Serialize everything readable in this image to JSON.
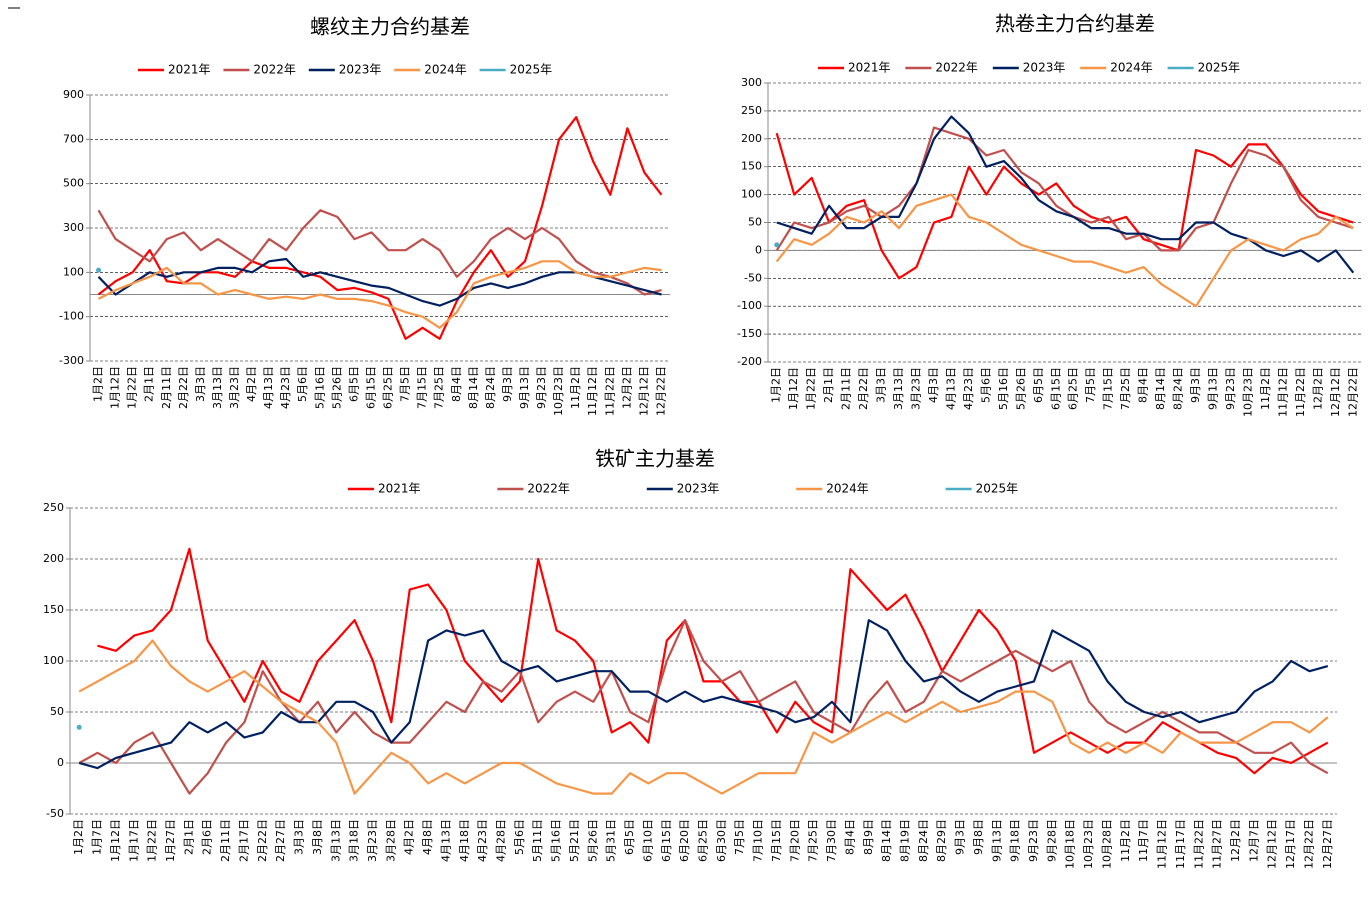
{
  "chart_data": [
    {
      "type": "line",
      "title": "螺纹主力合约基差",
      "grid": true,
      "categories": [
        "1月2日",
        "1月12日",
        "1月22日",
        "2月1日",
        "2月11日",
        "2月22日",
        "3月3日",
        "3月13日",
        "3月23日",
        "4月2日",
        "4月13日",
        "4月23日",
        "5月6日",
        "5月16日",
        "5月26日",
        "6月5日",
        "6月15日",
        "6月25日",
        "7月5日",
        "7月15日",
        "7月25日",
        "8月4日",
        "8月14日",
        "8月24日",
        "9月3日",
        "9月13日",
        "9月23日",
        "10月23日",
        "11月2日",
        "11月12日",
        "11月22日",
        "12月2日",
        "12月12日",
        "12月22日"
      ],
      "ylim": [
        -300,
        900
      ],
      "yticks": [
        -300,
        -100,
        100,
        300,
        500,
        700,
        900
      ],
      "series": [
        {
          "name": "2021年",
          "color": "#ff0000",
          "values": [
            0,
            60,
            100,
            200,
            60,
            50,
            100,
            100,
            80,
            150,
            120,
            120,
            100,
            80,
            20,
            30,
            10,
            -20,
            -200,
            -150,
            -200,
            -30,
            100,
            200,
            80,
            150,
            400,
            700,
            800,
            600,
            450,
            750,
            550,
            450
          ]
        },
        {
          "name": "2022年",
          "color": "#c0504d",
          "values": [
            380,
            250,
            200,
            150,
            250,
            280,
            200,
            250,
            200,
            150,
            250,
            200,
            300,
            380,
            350,
            250,
            280,
            200,
            200,
            250,
            200,
            80,
            150,
            250,
            300,
            250,
            300,
            250,
            150,
            100,
            80,
            50,
            0,
            20
          ]
        },
        {
          "name": "2023年",
          "color": "#002060",
          "values": [
            80,
            0,
            50,
            100,
            80,
            100,
            100,
            120,
            120,
            100,
            150,
            160,
            80,
            100,
            80,
            60,
            40,
            30,
            0,
            -30,
            -50,
            -20,
            30,
            50,
            30,
            50,
            80,
            100,
            100,
            80,
            60,
            40,
            20,
            0
          ]
        },
        {
          "name": "2024年",
          "color": "#f79646",
          "values": [
            -20,
            20,
            50,
            80,
            120,
            50,
            50,
            0,
            20,
            0,
            -20,
            -10,
            -20,
            0,
            -20,
            -20,
            -30,
            -50,
            -80,
            -100,
            -150,
            -80,
            50,
            80,
            100,
            120,
            150,
            150,
            100,
            80,
            80,
            100,
            120,
            110
          ]
        },
        {
          "name": "2025年",
          "color": "#4bacc6",
          "values": [
            110,
            null,
            null,
            null,
            null,
            null,
            null,
            null,
            null,
            null,
            null,
            null,
            null,
            null,
            null,
            null,
            null,
            null,
            null,
            null,
            null,
            null,
            null,
            null,
            null,
            null,
            null,
            null,
            null,
            null,
            null,
            null,
            null,
            null
          ]
        }
      ]
    },
    {
      "type": "line",
      "title": "热卷主力合约基差",
      "grid": true,
      "categories": [
        "1月2日",
        "1月12日",
        "1月22日",
        "2月1日",
        "2月11日",
        "2月22日",
        "3月3日",
        "3月13日",
        "3月23日",
        "4月3日",
        "4月13日",
        "4月23日",
        "5月6日",
        "5月16日",
        "5月26日",
        "6月5日",
        "6月15日",
        "6月25日",
        "7月5日",
        "7月15日",
        "7月25日",
        "8月4日",
        "8月14日",
        "8月24日",
        "9月3日",
        "9月13日",
        "9月23日",
        "10月23日",
        "11月2日",
        "11月12日",
        "11月22日",
        "12月2日",
        "12月12日",
        "12月22日"
      ],
      "ylim": [
        -200,
        300
      ],
      "yticks": [
        -200,
        -150,
        -100,
        -50,
        0,
        50,
        100,
        150,
        200,
        250,
        300
      ],
      "series": [
        {
          "name": "2021年",
          "color": "#ff0000",
          "values": [
            210,
            100,
            130,
            50,
            80,
            90,
            0,
            -50,
            -30,
            50,
            60,
            150,
            100,
            150,
            120,
            100,
            120,
            80,
            60,
            50,
            60,
            20,
            10,
            0,
            180,
            170,
            150,
            190,
            190,
            150,
            100,
            70,
            60,
            50
          ]
        },
        {
          "name": "2022年",
          "color": "#c0504d",
          "values": [
            0,
            50,
            40,
            50,
            70,
            80,
            60,
            80,
            120,
            220,
            210,
            200,
            170,
            180,
            140,
            120,
            80,
            60,
            50,
            60,
            20,
            30,
            0,
            0,
            40,
            50,
            120,
            180,
            170,
            150,
            90,
            60,
            50,
            40
          ]
        },
        {
          "name": "2023年",
          "color": "#002060",
          "values": [
            50,
            40,
            30,
            80,
            40,
            40,
            60,
            60,
            120,
            200,
            240,
            210,
            150,
            160,
            130,
            90,
            70,
            60,
            40,
            40,
            30,
            30,
            20,
            20,
            50,
            50,
            30,
            20,
            0,
            -10,
            0,
            -20,
            0,
            -40
          ]
        },
        {
          "name": "2024年",
          "color": "#f79646",
          "values": [
            -20,
            20,
            10,
            30,
            60,
            50,
            70,
            40,
            80,
            90,
            100,
            60,
            50,
            30,
            10,
            0,
            -10,
            -20,
            -20,
            -30,
            -40,
            -30,
            -60,
            -80,
            -100,
            -50,
            0,
            20,
            10,
            0,
            20,
            30,
            60,
            40
          ]
        },
        {
          "name": "2025年",
          "color": "#4bacc6",
          "values": [
            10,
            null,
            null,
            null,
            null,
            null,
            null,
            null,
            null,
            null,
            null,
            null,
            null,
            null,
            null,
            null,
            null,
            null,
            null,
            null,
            null,
            null,
            null,
            null,
            null,
            null,
            null,
            null,
            null,
            null,
            null,
            null,
            null,
            null
          ]
        }
      ]
    },
    {
      "type": "line",
      "title": "铁矿主力基差",
      "grid": true,
      "categories": [
        "1月2日",
        "1月7日",
        "1月12日",
        "1月17日",
        "1月22日",
        "1月27日",
        "2月1日",
        "2月6日",
        "2月11日",
        "2月17日",
        "2月22日",
        "2月27日",
        "3月3日",
        "3月8日",
        "3月13日",
        "3月18日",
        "3月23日",
        "3月28日",
        "4月2日",
        "4月8日",
        "4月13日",
        "4月18日",
        "4月23日",
        "4月28日",
        "5月6日",
        "5月11日",
        "5月16日",
        "5月21日",
        "5月26日",
        "5月31日",
        "6月5日",
        "6月10日",
        "6月15日",
        "6月20日",
        "6月25日",
        "6月30日",
        "7月5日",
        "7月10日",
        "7月15日",
        "7月20日",
        "7月25日",
        "7月30日",
        "8月4日",
        "8月9日",
        "8月14日",
        "8月19日",
        "8月24日",
        "8月29日",
        "9月3日",
        "9月8日",
        "9月13日",
        "9月18日",
        "9月23日",
        "9月28日",
        "10月18日",
        "10月23日",
        "10月28日",
        "11月2日",
        "11月7日",
        "11月12日",
        "11月17日",
        "11月22日",
        "11月27日",
        "12月2日",
        "12月7日",
        "12月12日",
        "12月17日",
        "12月22日",
        "12月27日"
      ],
      "ylim": [
        -50,
        250
      ],
      "yticks": [
        -50,
        0,
        50,
        100,
        150,
        200,
        250
      ],
      "series": [
        {
          "name": "2021年",
          "color": "#ff0000",
          "values": [
            null,
            115,
            110,
            125,
            130,
            150,
            210,
            120,
            90,
            60,
            100,
            70,
            60,
            100,
            120,
            140,
            100,
            40,
            170,
            175,
            150,
            100,
            80,
            60,
            80,
            200,
            130,
            120,
            100,
            30,
            40,
            20,
            120,
            140,
            80,
            80,
            60,
            60,
            30,
            60,
            40,
            30,
            190,
            170,
            150,
            165,
            130,
            90,
            120,
            150,
            130,
            100,
            10,
            20,
            30,
            20,
            10,
            20,
            20,
            40,
            30,
            20,
            10,
            5,
            -10,
            5,
            0,
            10,
            20
          ]
        },
        {
          "name": "2022年",
          "color": "#c0504d",
          "values": [
            0,
            10,
            0,
            20,
            30,
            0,
            -30,
            -10,
            20,
            40,
            90,
            60,
            40,
            60,
            30,
            50,
            30,
            20,
            20,
            40,
            60,
            50,
            80,
            70,
            90,
            40,
            60,
            70,
            60,
            90,
            50,
            40,
            100,
            140,
            100,
            80,
            90,
            60,
            70,
            80,
            50,
            40,
            30,
            60,
            80,
            50,
            60,
            90,
            80,
            90,
            100,
            110,
            100,
            90,
            100,
            60,
            40,
            30,
            40,
            50,
            40,
            30,
            30,
            20,
            10,
            10,
            20,
            0,
            -10
          ]
        },
        {
          "name": "2023年",
          "color": "#002060",
          "values": [
            0,
            -5,
            5,
            10,
            15,
            20,
            40,
            30,
            40,
            25,
            30,
            50,
            40,
            40,
            60,
            60,
            50,
            20,
            40,
            120,
            130,
            125,
            130,
            100,
            90,
            95,
            80,
            85,
            90,
            90,
            70,
            70,
            60,
            70,
            60,
            65,
            60,
            55,
            50,
            40,
            45,
            60,
            40,
            140,
            130,
            100,
            80,
            85,
            70,
            60,
            70,
            75,
            80,
            130,
            120,
            110,
            80,
            60,
            50,
            45,
            50,
            40,
            45,
            50,
            70,
            80,
            100,
            90,
            95
          ]
        },
        {
          "name": "2024年",
          "color": "#f79646",
          "values": [
            70,
            80,
            90,
            100,
            120,
            95,
            80,
            70,
            80,
            90,
            75,
            60,
            50,
            40,
            20,
            -30,
            -10,
            10,
            0,
            -20,
            -10,
            -20,
            -10,
            0,
            0,
            -10,
            -20,
            -25,
            -30,
            -30,
            -10,
            -20,
            -10,
            -10,
            -20,
            -30,
            -20,
            -10,
            -10,
            -10,
            30,
            20,
            30,
            40,
            50,
            40,
            50,
            60,
            50,
            55,
            60,
            70,
            70,
            60,
            20,
            10,
            20,
            10,
            20,
            10,
            30,
            20,
            20,
            20,
            30,
            40,
            40,
            30,
            45
          ]
        },
        {
          "name": "2025年",
          "color": "#4bacc6",
          "values": [
            35,
            null,
            null,
            null,
            null,
            null,
            null,
            null,
            null,
            null,
            null,
            null,
            null,
            null,
            null,
            null,
            null,
            null,
            null,
            null,
            null,
            null,
            null,
            null,
            null,
            null,
            null,
            null,
            null,
            null,
            null,
            null,
            null,
            null,
            null,
            null,
            null,
            null,
            null,
            null,
            null,
            null,
            null,
            null,
            null,
            null,
            null,
            null,
            null,
            null,
            null,
            null,
            null,
            null,
            null,
            null,
            null,
            null,
            null,
            null,
            null,
            null,
            null,
            null,
            null,
            null,
            null,
            null,
            null
          ]
        }
      ]
    }
  ]
}
